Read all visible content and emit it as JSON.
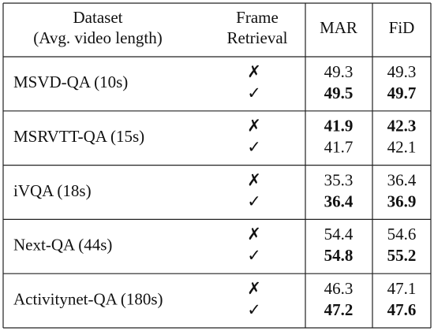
{
  "header": {
    "dataset": [
      "Dataset",
      "(Avg. video length)"
    ],
    "retrieval": [
      "Frame",
      "Retrieval"
    ],
    "mar": "MAR",
    "fid": "FiD"
  },
  "groups": [
    {
      "dataset": "MSVD-QA (10s)",
      "rows": [
        {
          "retrieval": "✗",
          "mar": 49.3,
          "fid": 49.3,
          "bold": [
            false,
            false
          ]
        },
        {
          "retrieval": "✓",
          "mar": 49.5,
          "fid": 49.7,
          "bold": [
            true,
            true
          ]
        }
      ]
    },
    {
      "dataset": "MSRVTT-QA (15s)",
      "rows": [
        {
          "retrieval": "✗",
          "mar": 41.9,
          "fid": 42.3,
          "bold": [
            true,
            true
          ]
        },
        {
          "retrieval": "✓",
          "mar": 41.7,
          "fid": 42.1,
          "bold": [
            false,
            false
          ]
        }
      ]
    },
    {
      "dataset": "iVQA (18s)",
      "rows": [
        {
          "retrieval": "✗",
          "mar": 35.3,
          "fid": 36.4,
          "bold": [
            false,
            false
          ]
        },
        {
          "retrieval": "✓",
          "mar": 36.4,
          "fid": 36.9,
          "bold": [
            true,
            true
          ]
        }
      ]
    },
    {
      "dataset": "Next-QA (44s)",
      "rows": [
        {
          "retrieval": "✗",
          "mar": 54.4,
          "fid": 54.6,
          "bold": [
            false,
            false
          ]
        },
        {
          "retrieval": "✓",
          "mar": 54.8,
          "fid": 55.2,
          "bold": [
            true,
            true
          ]
        }
      ]
    },
    {
      "dataset": "Activitynet-QA (180s)",
      "rows": [
        {
          "retrieval": "✗",
          "mar": 46.3,
          "fid": 47.1,
          "bold": [
            false,
            false
          ]
        },
        {
          "retrieval": "✓",
          "mar": 47.2,
          "fid": 47.6,
          "bold": [
            true,
            true
          ]
        }
      ]
    }
  ]
}
